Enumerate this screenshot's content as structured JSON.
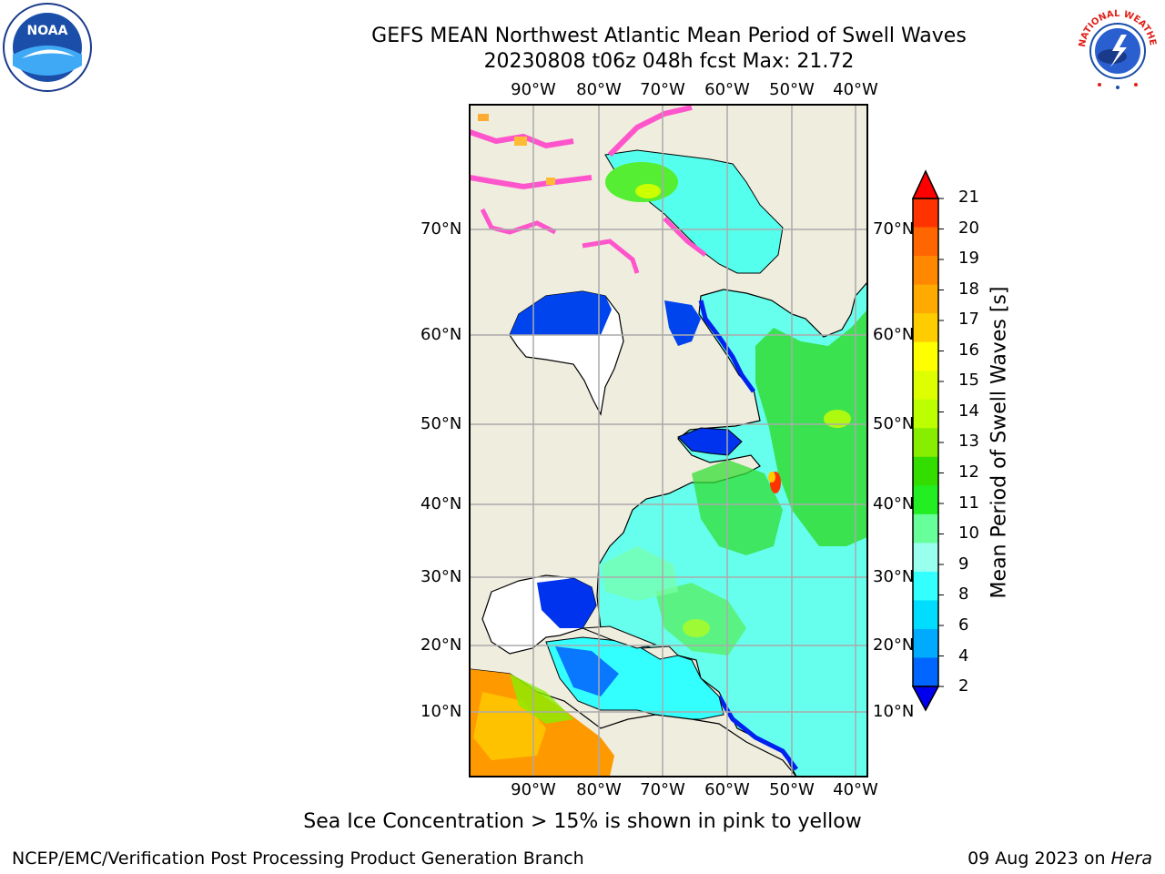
{
  "header": {
    "title_line1": "GEFS MEAN Northwest Atlantic Mean Period of Swell Waves",
    "title_line2": "20230808 t06z 048h fcst   Max: 21.72"
  },
  "map": {
    "lon_labels": [
      "90°W",
      "80°W",
      "70°W",
      "60°W",
      "50°W",
      "40°W"
    ],
    "lat_labels": [
      "70°N",
      "60°N",
      "50°N",
      "40°N",
      "30°N",
      "20°N",
      "10°N"
    ]
  },
  "colorbar": {
    "label": "Mean Period of Swell Waves [s]",
    "ticks": [
      "21",
      "20",
      "19",
      "18",
      "17",
      "16",
      "15",
      "14",
      "13",
      "12",
      "11",
      "10",
      "9",
      "8",
      "6",
      "4",
      "2"
    ],
    "colors": [
      "#ff0000",
      "#ff3300",
      "#ff6600",
      "#ff8800",
      "#ffaa00",
      "#ffcc00",
      "#ffff00",
      "#ddff00",
      "#bbff00",
      "#88ee00",
      "#33dd00",
      "#22ee22",
      "#66ff99",
      "#99ffee",
      "#33ffff",
      "#00ddff",
      "#00aaff",
      "#0066ff",
      "#0000ee"
    ]
  },
  "logos": {
    "left": {
      "icon": "noaa-logo",
      "text": "NOAA"
    },
    "right": {
      "icon": "nws-logo",
      "text": "NATIONAL WEATHER SERVICE"
    }
  },
  "caption": "Sea Ice Concentration > 15% is shown in pink to yellow",
  "footer": {
    "left": "NCEP/EMC/Verification Post Processing Product Generation Branch",
    "right_date": "09 Aug 2023 on ",
    "right_host": "Hera"
  }
}
